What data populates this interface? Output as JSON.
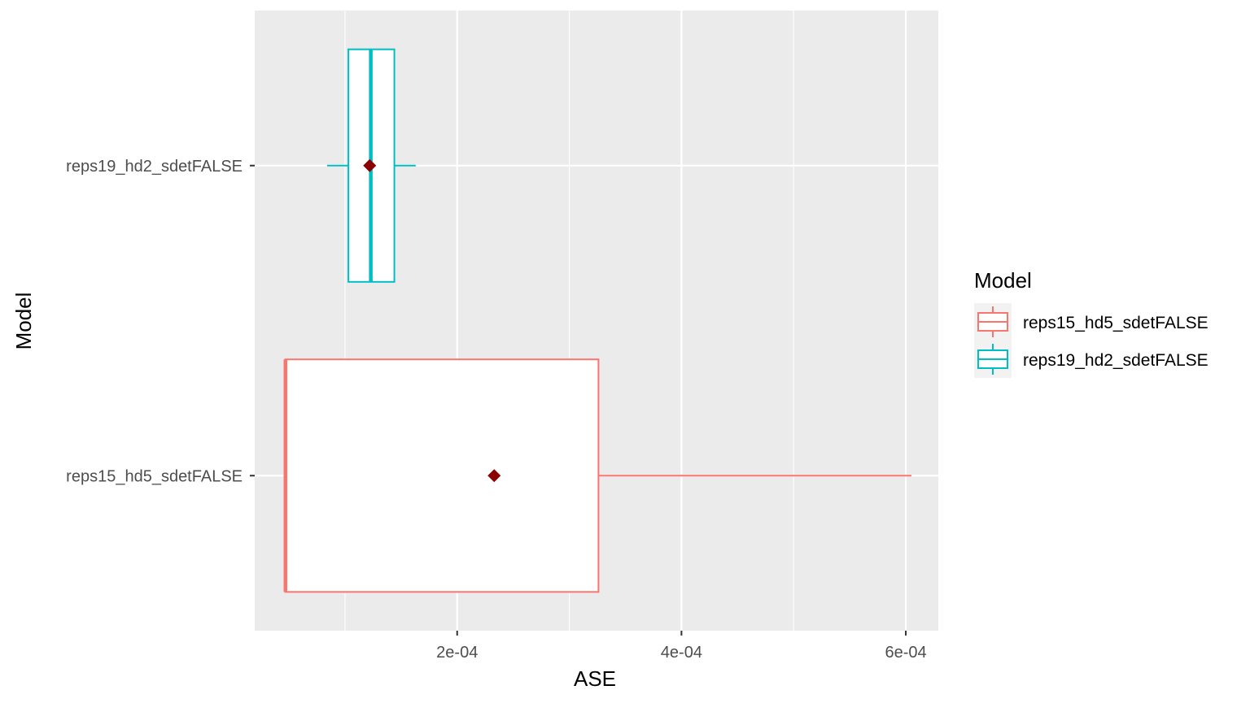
{
  "chart_data": {
    "type": "boxplot",
    "orientation": "horizontal",
    "title": "",
    "xlabel": "ASE",
    "ylabel": "Model",
    "xlim": [
      1.95e-05,
      0.000629
    ],
    "x_ticks": [
      {
        "value": 0.0002,
        "label": "2e-04"
      },
      {
        "value": 0.0004,
        "label": "4e-04"
      },
      {
        "value": 0.0006,
        "label": "6e-04"
      }
    ],
    "categories": [
      "reps15_hd5_sdetFALSE",
      "reps19_hd2_sdetFALSE"
    ],
    "series": [
      {
        "name": "reps15_hd5_sdetFALSE",
        "color": "#F8766D",
        "min": 4.69e-05,
        "q1": 4.69e-05,
        "median": 4.69e-05,
        "q3": 0.000326,
        "max": 0.000605,
        "mean": 0.000233
      },
      {
        "name": "reps19_hd2_sdetFALSE",
        "color": "#00BFC4",
        "min": 8.4e-05,
        "q1": 0.000103,
        "median": 0.000123,
        "q3": 0.000144,
        "max": 0.000163,
        "mean": 0.000122
      }
    ],
    "mean_marker_color": "#8B0000",
    "panel_background": "#EBEBEB",
    "grid": true,
    "legend": {
      "title": "Model",
      "position": "right",
      "entries": [
        "reps15_hd5_sdetFALSE",
        "reps19_hd2_sdetFALSE"
      ]
    }
  }
}
